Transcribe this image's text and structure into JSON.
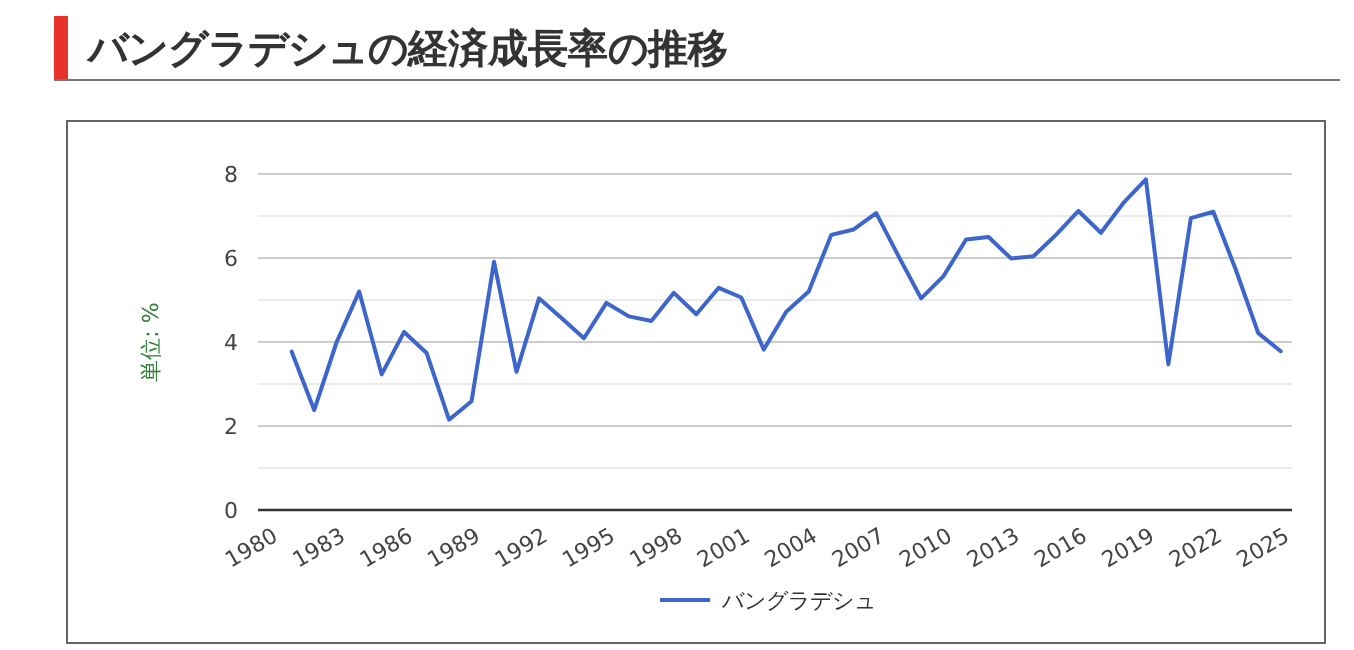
{
  "chart_data": {
    "type": "line",
    "title": "バングラデシュの経済成長率の推移",
    "ylabel": "単位: %",
    "categories": [
      "1980",
      null,
      null,
      "1983",
      null,
      null,
      "1986",
      null,
      null,
      "1989",
      null,
      null,
      "1992",
      null,
      null,
      "1995",
      null,
      null,
      "1998",
      null,
      null,
      "2001",
      null,
      null,
      "2004",
      null,
      null,
      "2007",
      null,
      null,
      "2010",
      null,
      null,
      "2013",
      null,
      null,
      "2016",
      null,
      null,
      "2019",
      null,
      null,
      "2022",
      null,
      null,
      "2025"
    ],
    "series": [
      {
        "name": "バングラデシュ",
        "color": "#3d66cc",
        "values": [
          null,
          3.77,
          2.38,
          4.0,
          5.2,
          3.23,
          4.24,
          3.74,
          2.15,
          2.59,
          5.91,
          3.29,
          5.04,
          4.57,
          4.09,
          4.93,
          4.61,
          4.5,
          5.17,
          4.66,
          5.29,
          5.06,
          3.82,
          4.72,
          5.2,
          6.55,
          6.68,
          7.07,
          6.04,
          5.04,
          5.57,
          6.44,
          6.5,
          5.99,
          6.04,
          6.55,
          7.12,
          6.6,
          7.31,
          7.87,
          3.47,
          6.95,
          7.1,
          5.72,
          4.21,
          3.78
        ]
      }
    ],
    "ylim": [
      0,
      8
    ],
    "yticks": [
      0,
      {
        "value": 1,
        "label": null
      },
      2,
      {
        "value": 3,
        "label": null
      },
      4,
      {
        "value": 5,
        "label": null
      },
      6,
      {
        "value": 7,
        "label": null
      },
      8
    ],
    "grid": "y",
    "legend": "bottom"
  }
}
